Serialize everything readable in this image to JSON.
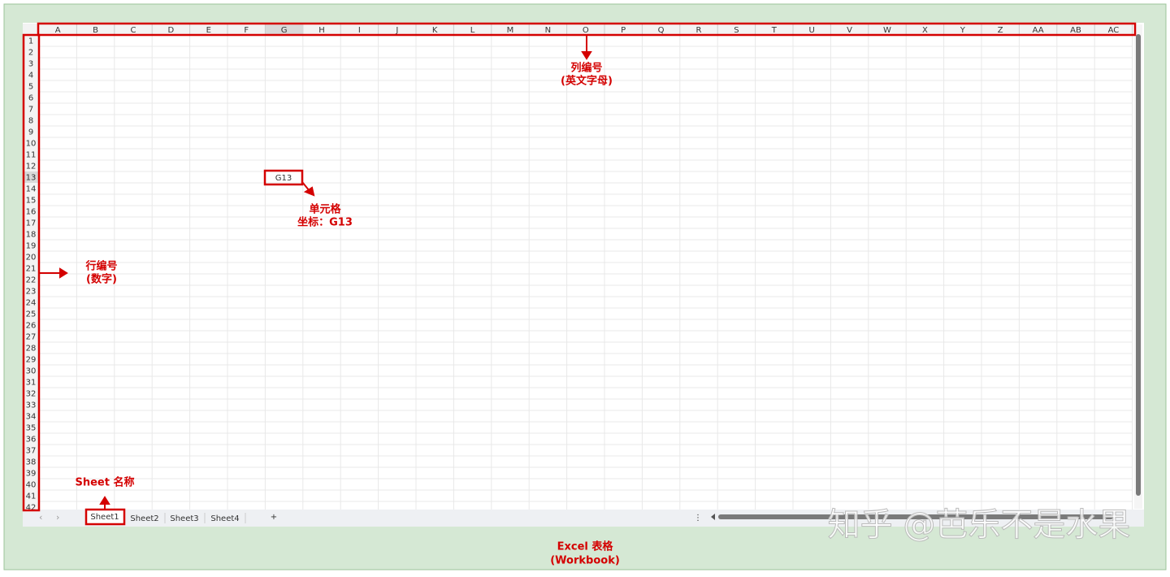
{
  "spreadsheet": {
    "column_headers": [
      "A",
      "B",
      "C",
      "D",
      "E",
      "F",
      "G",
      "H",
      "I",
      "J",
      "K",
      "L",
      "M",
      "N",
      "O",
      "P",
      "Q",
      "R",
      "S",
      "T",
      "U",
      "V",
      "W",
      "X",
      "Y",
      "Z",
      "AA",
      "AB",
      "AC"
    ],
    "row_headers": [
      1,
      2,
      3,
      4,
      5,
      6,
      7,
      8,
      9,
      10,
      11,
      12,
      13,
      14,
      15,
      16,
      17,
      18,
      19,
      20,
      21,
      22,
      23,
      24,
      25,
      26,
      27,
      28,
      29,
      30,
      31,
      32,
      33,
      34,
      35,
      36,
      37,
      38,
      39,
      40,
      41,
      42
    ],
    "cell": "G13",
    "sheet_tabs": [
      "Sheet1",
      "Sheet2",
      "Sheet3",
      "Sheet4"
    ],
    "add_tab": "+"
  },
  "annotations": {
    "column_label": [
      "列编号",
      "(英文字母)"
    ],
    "cell_label": [
      "单元格",
      "坐标：G13"
    ],
    "row_label": [
      "行编号",
      "(数字)"
    ],
    "sheet_name_label": "Sheet 名称",
    "workbook_label": [
      "Excel 表格",
      "(Workbook)"
    ]
  },
  "watermark": "知乎 @芭乐不是水果"
}
